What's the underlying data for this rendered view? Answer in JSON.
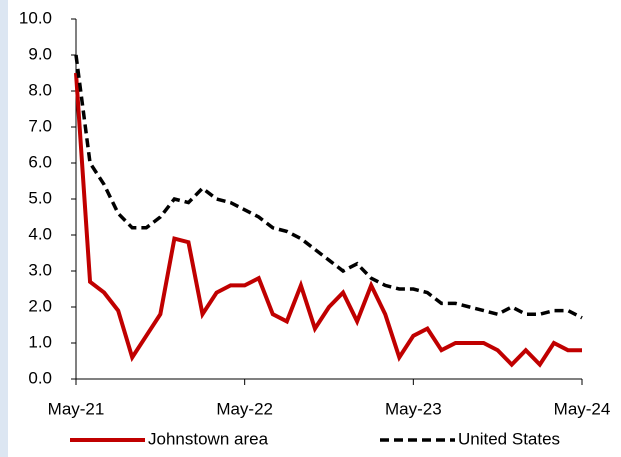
{
  "chart_data": {
    "type": "line",
    "categories": [
      "May-21",
      null,
      null,
      null,
      null,
      null,
      null,
      null,
      null,
      null,
      null,
      null,
      "May-22",
      null,
      null,
      null,
      null,
      null,
      null,
      null,
      null,
      null,
      null,
      null,
      "May-23",
      null,
      null,
      null,
      null,
      null,
      null,
      null,
      null,
      null,
      null,
      null,
      "May-24"
    ],
    "series": [
      {
        "name": "Johnstown area",
        "color": "#c00000",
        "dash": "solid",
        "values": [
          8.5,
          2.7,
          2.4,
          1.9,
          0.6,
          1.2,
          1.8,
          3.9,
          3.8,
          1.8,
          2.4,
          2.6,
          2.6,
          2.8,
          1.8,
          1.6,
          2.6,
          1.4,
          2.0,
          2.4,
          1.6,
          2.6,
          1.8,
          0.6,
          1.2,
          1.4,
          0.8,
          1.0,
          1.0,
          1.0,
          0.8,
          0.4,
          0.8,
          0.4,
          1.0,
          0.8,
          0.8
        ]
      },
      {
        "name": "United States",
        "color": "#000000",
        "dash": "dashed",
        "values": [
          9.0,
          6.0,
          5.4,
          4.6,
          4.2,
          4.2,
          4.5,
          5.0,
          4.9,
          5.3,
          5.0,
          4.9,
          4.7,
          4.5,
          4.2,
          4.1,
          3.9,
          3.6,
          3.3,
          3.0,
          3.2,
          2.8,
          2.6,
          2.5,
          2.5,
          2.4,
          2.1,
          2.1,
          2.0,
          1.9,
          1.8,
          2.0,
          1.8,
          1.8,
          1.9,
          1.9,
          1.7
        ]
      }
    ],
    "ylim": [
      0,
      10
    ],
    "yticks": [
      {
        "value": 0,
        "label": "0.0"
      },
      {
        "value": 1,
        "label": "1.0"
      },
      {
        "value": 2,
        "label": "2.0"
      },
      {
        "value": 3,
        "label": "3.0"
      },
      {
        "value": 4,
        "label": "4.0"
      },
      {
        "value": 5,
        "label": "5.0"
      },
      {
        "value": 6,
        "label": "6.0"
      },
      {
        "value": 7,
        "label": "7.0"
      },
      {
        "value": 8,
        "label": "8.0"
      },
      {
        "value": 9,
        "label": "9.0"
      },
      {
        "value": 10,
        "label": "10.0"
      }
    ],
    "grid": false,
    "legend": "bottom"
  }
}
